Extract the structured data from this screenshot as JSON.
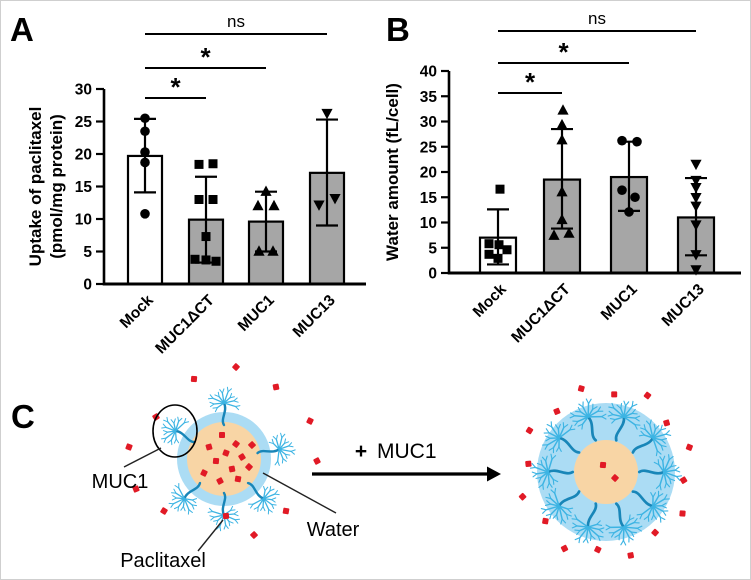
{
  "figure": {
    "panels": [
      {
        "label": "A"
      },
      {
        "label": "B"
      },
      {
        "label": "C"
      }
    ]
  },
  "chart_data": [
    {
      "type": "bar",
      "panel": "A",
      "categories": [
        "Mock",
        "MUC1ΔCT",
        "MUC1",
        "MUC13"
      ],
      "values": [
        19.7,
        9.9,
        9.6,
        17.1
      ],
      "errors_low": [
        14.1,
        3.3,
        5.0,
        9.0
      ],
      "errors_high": [
        25.4,
        16.5,
        14.2,
        25.3
      ],
      "points": [
        [
          [
            25.5,
            0
          ],
          [
            23.5,
            0
          ],
          [
            20.3,
            0
          ],
          [
            18.7,
            0
          ],
          [
            10.8,
            0
          ]
        ],
        [
          [
            18.4,
            -7
          ],
          [
            18.5,
            7
          ],
          [
            13.0,
            -7
          ],
          [
            13.0,
            7
          ],
          [
            7.3,
            0
          ],
          [
            3.8,
            -11
          ],
          [
            3.7,
            0
          ],
          [
            3.5,
            10
          ]
        ],
        [
          [
            14.2,
            0
          ],
          [
            12.0,
            -8
          ],
          [
            12.0,
            8
          ],
          [
            5.0,
            -7
          ],
          [
            5.0,
            7
          ]
        ],
        [
          [
            26.3,
            0
          ],
          [
            12.2,
            -8
          ],
          [
            13.2,
            8
          ]
        ]
      ],
      "markers": [
        "circle",
        "square",
        "triangle-up",
        "triangle-down"
      ],
      "bar_colors": [
        "#ffffff",
        "#a6a6a6",
        "#a6a6a6",
        "#a6a6a6"
      ],
      "ylabel_lines": [
        "Uptake of paclitaxel",
        "(pmol/mg protein)"
      ],
      "ylim": [
        0,
        30
      ],
      "yticks": [
        0,
        5,
        10,
        15,
        20,
        25,
        30
      ],
      "significance": [
        {
          "from": 0,
          "to": 3,
          "label": "ns"
        },
        {
          "from": 0,
          "to": 2,
          "label": "*"
        },
        {
          "from": 0,
          "to": 1,
          "label": "*"
        }
      ]
    },
    {
      "type": "bar",
      "panel": "B",
      "categories": [
        "Mock",
        "MUC1ΔCT",
        "MUC1",
        "MUC13"
      ],
      "values": [
        7.0,
        18.5,
        19.0,
        11.0
      ],
      "errors_low": [
        1.7,
        8.8,
        12.3,
        3.5
      ],
      "errors_high": [
        12.6,
        28.5,
        26.0,
        18.8
      ],
      "points": [
        [
          [
            16.6,
            2
          ],
          [
            5.8,
            -9
          ],
          [
            5.6,
            1
          ],
          [
            4.6,
            9
          ],
          [
            3.7,
            -9
          ],
          [
            2.9,
            0
          ]
        ],
        [
          [
            32.2,
            1
          ],
          [
            29.3,
            0
          ],
          [
            26.3,
            0
          ],
          [
            16.0,
            0
          ],
          [
            10.5,
            0
          ],
          [
            7.4,
            -8
          ],
          [
            7.8,
            7
          ]
        ],
        [
          [
            26.2,
            -7
          ],
          [
            26.0,
            8
          ],
          [
            16.4,
            -7
          ],
          [
            15.0,
            6
          ],
          [
            12.1,
            0
          ]
        ],
        [
          [
            21.6,
            0
          ],
          [
            18.4,
            0
          ],
          [
            17.0,
            0
          ],
          [
            15.0,
            0
          ],
          [
            13.3,
            0
          ],
          [
            9.6,
            0
          ],
          [
            3.7,
            0
          ],
          [
            0.7,
            0
          ]
        ]
      ],
      "markers": [
        "square",
        "triangle-up",
        "circle",
        "triangle-down"
      ],
      "bar_colors": [
        "#ffffff",
        "#a6a6a6",
        "#a6a6a6",
        "#a6a6a6"
      ],
      "ylabel_lines": [
        "Water amount (fL/cell)"
      ],
      "ylim": [
        0,
        40
      ],
      "yticks": [
        0,
        5,
        10,
        15,
        20,
        25,
        30,
        35,
        40
      ],
      "significance": [
        {
          "from": 0,
          "to": 3,
          "label": "ns"
        },
        {
          "from": 0,
          "to": 2,
          "label": "*"
        },
        {
          "from": 0,
          "to": 1,
          "label": "*"
        }
      ]
    }
  ],
  "panelC": {
    "labels": {
      "muc1": "MUC1",
      "water": "Water",
      "paclitaxel": "Paclitaxel",
      "reaction_plus": "+",
      "reaction_muc1": "MUC1"
    },
    "colors": {
      "water": "#abdcf4",
      "core": "#f8d5a5",
      "paclitaxel": "#e11a26",
      "muc1_stem": "#1886b8",
      "muc1_branch": "#3db4e3"
    }
  }
}
